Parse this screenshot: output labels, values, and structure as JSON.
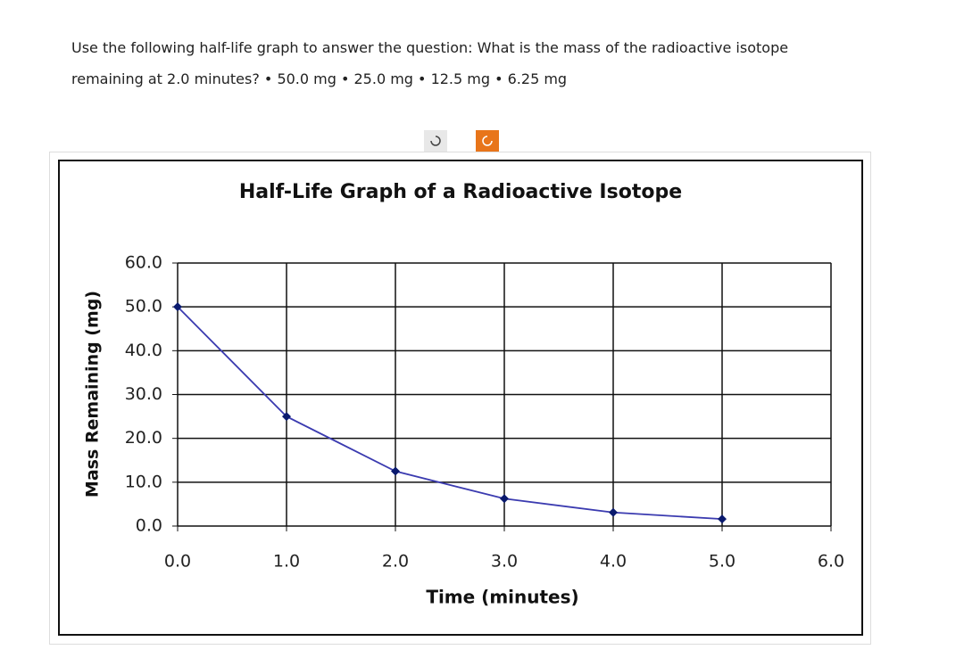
{
  "question": {
    "lines": [
      "Use the following half-life graph to answer the question: What is the mass of the radioactive isotope",
      "remaining at 2.0 minutes? • 50.0 mg • 25.0 mg • 12.5 mg • 6.25 mg"
    ]
  },
  "chart_data": {
    "type": "line",
    "title": "Half-Life Graph of a Radioactive Isotope",
    "x_label": "Time (minutes)",
    "y_label": "Mass Remaining (mg)",
    "x": [
      0,
      1,
      2,
      3,
      4,
      5
    ],
    "series": [
      {
        "name": "Mass",
        "color": "#3b3bb0",
        "marker_color": "#0a1a6e",
        "values": [
          50,
          25,
          12.5,
          6.25,
          3.1,
          1.6
        ]
      }
    ],
    "xlim": [
      0,
      6
    ],
    "ylim": [
      0,
      60
    ],
    "xticks": [
      {
        "value": 0,
        "label": "0.0"
      },
      {
        "value": 1,
        "label": "1.0"
      },
      {
        "value": 2,
        "label": "2.0"
      },
      {
        "value": 3,
        "label": "3.0"
      },
      {
        "value": 4,
        "label": "4.0"
      },
      {
        "value": 5,
        "label": "5.0"
      },
      {
        "value": 6,
        "label": "6.0"
      }
    ],
    "yticks": [
      {
        "value": 0,
        "label": "0.0"
      },
      {
        "value": 10,
        "label": "10.0"
      },
      {
        "value": 20,
        "label": "20.0"
      },
      {
        "value": 30,
        "label": "30.0"
      },
      {
        "value": 40,
        "label": "40.0"
      },
      {
        "value": 50,
        "label": "50.0"
      },
      {
        "value": 60,
        "label": "60.0"
      }
    ],
    "grid": true
  }
}
